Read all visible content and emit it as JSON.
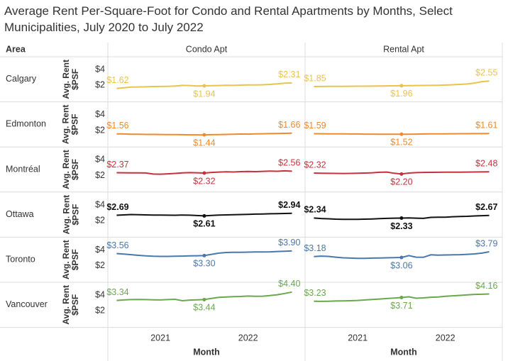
{
  "chart_data": {
    "type": "line",
    "title": "Average Rent Per-Square-Foot for Condo and Rental Apartments by Months, Select Municipalities, July 2020 to July 2022",
    "row_header": "Area",
    "columns": [
      "Condo Apt",
      "Rental Apt"
    ],
    "y_label": "Avg. Rent $PSF",
    "x_label": "Month",
    "x": [
      2020.5,
      2020.583,
      2020.667,
      2020.75,
      2020.833,
      2020.917,
      2021,
      2021.083,
      2021.167,
      2021.25,
      2021.333,
      2021.417,
      2021.5,
      2021.583,
      2021.667,
      2021.75,
      2021.833,
      2021.917,
      2022,
      2022.083,
      2022.167,
      2022.25,
      2022.333,
      2022.417,
      2022.5
    ],
    "xlim": [
      2020.4,
      2022.65
    ],
    "xticks": [
      2021,
      2022
    ],
    "ylim": [
      -0.1,
      5.65
    ],
    "yticks": [
      {
        "value": 4,
        "label": "$4"
      },
      {
        "value": 2,
        "label": "$2"
      }
    ],
    "areas": [
      {
        "name": "Calgary",
        "color": "#e9c44c",
        "series": [
          {
            "values": [
              1.62,
              1.7,
              1.78,
              1.8,
              1.82,
              1.85,
              1.86,
              1.88,
              1.92,
              2.0,
              1.98,
              1.92,
              1.94,
              1.96,
              1.98,
              2.02,
              2.0,
              2.03,
              2.05,
              2.06,
              2.08,
              2.12,
              2.2,
              2.28,
              2.31
            ],
            "value_labels": [
              "$1.62",
              null,
              null,
              null,
              null,
              null,
              null,
              null,
              null,
              null,
              null,
              null,
              "$1.94",
              null,
              null,
              null,
              null,
              null,
              null,
              null,
              null,
              null,
              null,
              null,
              "$2.31"
            ]
          },
          {
            "values": [
              1.85,
              1.86,
              1.87,
              1.88,
              1.88,
              1.89,
              1.9,
              1.9,
              1.91,
              1.92,
              1.93,
              1.94,
              1.96,
              1.97,
              1.98,
              1.99,
              2.0,
              2.02,
              2.04,
              2.08,
              2.12,
              2.18,
              2.3,
              2.48,
              2.55
            ],
            "value_labels": [
              "$1.85",
              null,
              null,
              null,
              null,
              null,
              null,
              null,
              null,
              null,
              null,
              null,
              "$1.96",
              null,
              null,
              null,
              null,
              null,
              null,
              null,
              null,
              null,
              null,
              null,
              "$2.55"
            ]
          }
        ]
      },
      {
        "name": "Edmonton",
        "color": "#ef8a2c",
        "series": [
          {
            "values": [
              1.56,
              1.55,
              1.53,
              1.52,
              1.5,
              1.5,
              1.49,
              1.48,
              1.47,
              1.46,
              1.45,
              1.45,
              1.44,
              1.46,
              1.48,
              1.5,
              1.52,
              1.55,
              1.54,
              1.56,
              1.58,
              1.6,
              1.62,
              1.64,
              1.66
            ],
            "value_labels": [
              "$1.56",
              null,
              null,
              null,
              null,
              null,
              null,
              null,
              null,
              null,
              null,
              null,
              "$1.44",
              null,
              null,
              null,
              null,
              null,
              null,
              null,
              null,
              null,
              null,
              null,
              "$1.66"
            ]
          },
          {
            "values": [
              1.59,
              1.58,
              1.57,
              1.56,
              1.56,
              1.55,
              1.55,
              1.54,
              1.54,
              1.53,
              1.53,
              1.52,
              1.52,
              1.53,
              1.54,
              1.55,
              1.56,
              1.57,
              1.57,
              1.58,
              1.59,
              1.59,
              1.6,
              1.6,
              1.61
            ],
            "value_labels": [
              "$1.59",
              null,
              null,
              null,
              null,
              null,
              null,
              null,
              null,
              null,
              null,
              null,
              "$1.52",
              null,
              null,
              null,
              null,
              null,
              null,
              null,
              null,
              null,
              null,
              null,
              "$1.61"
            ]
          }
        ]
      },
      {
        "name": "Montréal",
        "color": "#c5313d",
        "series": [
          {
            "values": [
              2.37,
              2.36,
              2.35,
              2.34,
              2.33,
              2.2,
              2.18,
              2.22,
              2.28,
              2.34,
              2.38,
              2.36,
              2.32,
              2.4,
              2.45,
              2.48,
              2.46,
              2.5,
              2.52,
              2.5,
              2.54,
              2.58,
              2.55,
              2.6,
              2.56
            ],
            "value_labels": [
              "$2.37",
              null,
              null,
              null,
              null,
              null,
              null,
              null,
              null,
              null,
              null,
              null,
              "$2.32",
              null,
              null,
              null,
              null,
              null,
              null,
              null,
              null,
              null,
              null,
              null,
              "$2.56"
            ]
          },
          {
            "values": [
              2.32,
              2.3,
              2.29,
              2.28,
              2.27,
              2.28,
              2.3,
              2.32,
              2.36,
              2.42,
              2.45,
              2.3,
              2.2,
              2.32,
              2.38,
              2.4,
              2.41,
              2.42,
              2.43,
              2.44,
              2.44,
              2.45,
              2.46,
              2.47,
              2.48
            ],
            "value_labels": [
              "$2.32",
              null,
              null,
              null,
              null,
              null,
              null,
              null,
              null,
              null,
              null,
              null,
              "$2.20",
              null,
              null,
              null,
              null,
              null,
              null,
              null,
              null,
              null,
              null,
              null,
              "$2.48"
            ]
          }
        ]
      },
      {
        "name": "Ottawa",
        "color": "#111111",
        "series": [
          {
            "values": [
              2.69,
              2.74,
              2.78,
              2.76,
              2.74,
              2.72,
              2.71,
              2.7,
              2.69,
              2.72,
              2.7,
              2.66,
              2.61,
              2.68,
              2.72,
              2.74,
              2.76,
              2.78,
              2.8,
              2.84,
              2.86,
              2.88,
              2.9,
              2.92,
              2.94
            ],
            "value_labels": [
              "$2.69",
              null,
              null,
              null,
              null,
              null,
              null,
              null,
              null,
              null,
              null,
              null,
              "$2.61",
              null,
              null,
              null,
              null,
              null,
              null,
              null,
              null,
              null,
              null,
              null,
              "$2.94"
            ]
          },
          {
            "values": [
              2.34,
              2.28,
              2.24,
              2.2,
              2.18,
              2.17,
              2.18,
              2.2,
              2.22,
              2.26,
              2.3,
              2.32,
              2.33,
              2.35,
              2.32,
              2.3,
              2.42,
              2.45,
              2.44,
              2.5,
              2.54,
              2.56,
              2.6,
              2.64,
              2.67
            ],
            "value_labels": [
              "$2.34",
              null,
              null,
              null,
              null,
              null,
              null,
              null,
              null,
              null,
              null,
              null,
              "$2.33",
              null,
              null,
              null,
              null,
              null,
              null,
              null,
              null,
              null,
              null,
              null,
              "$2.67"
            ]
          }
        ]
      },
      {
        "name": "Toronto",
        "color": "#4a77ad",
        "series": [
          {
            "values": [
              3.56,
              3.5,
              3.42,
              3.34,
              3.26,
              3.22,
              3.2,
              3.2,
              3.22,
              3.24,
              3.26,
              3.28,
              3.3,
              3.46,
              3.62,
              3.7,
              3.72,
              3.72,
              3.74,
              3.76,
              3.76,
              3.78,
              3.82,
              3.86,
              3.9
            ],
            "value_labels": [
              "$3.56",
              null,
              null,
              null,
              null,
              null,
              null,
              null,
              null,
              null,
              null,
              null,
              "$3.30",
              null,
              null,
              null,
              null,
              null,
              null,
              null,
              null,
              null,
              null,
              null,
              "$3.90"
            ]
          },
          {
            "values": [
              3.18,
              3.24,
              3.2,
              3.1,
              3.02,
              2.98,
              2.96,
              2.96,
              2.98,
              3.0,
              3.02,
              3.04,
              3.06,
              3.3,
              3.1,
              3.08,
              3.4,
              3.36,
              3.38,
              3.4,
              3.42,
              3.46,
              3.52,
              3.62,
              3.79
            ],
            "value_labels": [
              "$3.18",
              null,
              null,
              null,
              null,
              null,
              null,
              null,
              null,
              null,
              null,
              null,
              "$3.06",
              null,
              null,
              null,
              null,
              null,
              null,
              null,
              null,
              null,
              null,
              null,
              "$3.79"
            ]
          }
        ]
      },
      {
        "name": "Vancouver",
        "color": "#6aa84f",
        "series": [
          {
            "values": [
              3.34,
              3.4,
              3.44,
              3.46,
              3.44,
              3.42,
              3.4,
              3.44,
              3.48,
              3.3,
              3.38,
              3.42,
              3.44,
              3.6,
              3.72,
              3.78,
              3.82,
              3.84,
              3.9,
              3.86,
              3.88,
              3.96,
              4.06,
              4.22,
              4.4
            ],
            "value_labels": [
              "$3.34",
              null,
              null,
              null,
              null,
              null,
              null,
              null,
              null,
              null,
              null,
              null,
              "$3.44",
              null,
              null,
              null,
              null,
              null,
              null,
              null,
              null,
              null,
              null,
              null,
              "$4.40"
            ]
          },
          {
            "values": [
              3.23,
              3.22,
              3.24,
              3.26,
              3.28,
              3.3,
              3.34,
              3.4,
              3.46,
              3.52,
              3.58,
              3.64,
              3.71,
              3.8,
              3.62,
              3.66,
              3.74,
              3.78,
              3.86,
              3.92,
              3.98,
              4.04,
              4.1,
              4.12,
              4.16
            ],
            "value_labels": [
              "$3.23",
              null,
              null,
              null,
              null,
              null,
              null,
              null,
              null,
              null,
              null,
              null,
              "$3.71",
              null,
              null,
              null,
              null,
              null,
              null,
              null,
              null,
              null,
              null,
              null,
              "$4.16"
            ]
          }
        ]
      }
    ]
  }
}
